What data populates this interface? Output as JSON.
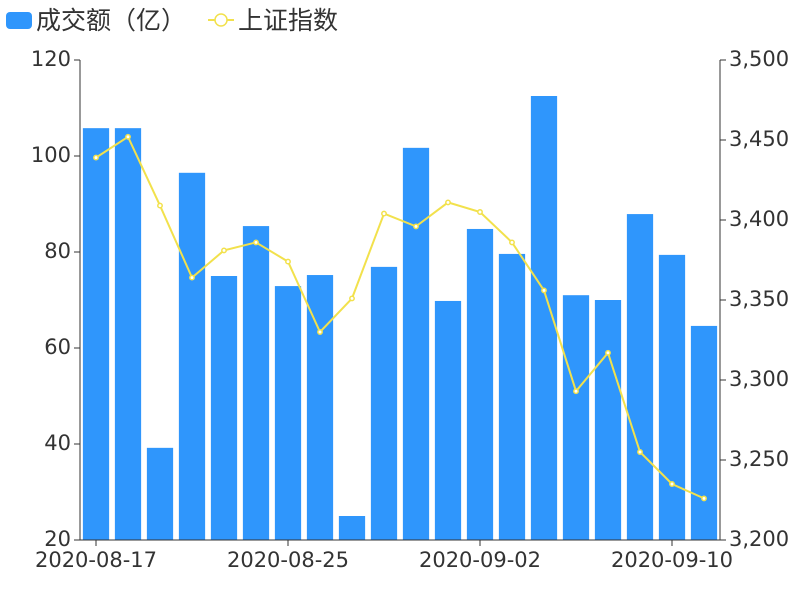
{
  "chart_data": {
    "type": "bar-line",
    "categories": [
      "2020-08-17",
      null,
      null,
      null,
      null,
      null,
      "2020-08-25",
      null,
      null,
      null,
      null,
      null,
      "2020-09-02",
      null,
      null,
      null,
      null,
      null,
      "2020-09-10",
      null
    ],
    "series": [
      {
        "name": "成交额（亿）",
        "type": "bar",
        "color": "#2f96fc",
        "axis": "y",
        "values": [
          105.8,
          105.8,
          39.2,
          96.5,
          75,
          85.4,
          72.9,
          75.2,
          25,
          76.9,
          101.7,
          69.8,
          84.8,
          79.6,
          112.5,
          71,
          70,
          87.9,
          79.4,
          64.6
        ]
      },
      {
        "name": "上证指数",
        "type": "line",
        "color": "#f2e14c",
        "axis": "y2",
        "values": [
          3439,
          3452,
          3409,
          3364,
          3381,
          3386,
          3374,
          3330,
          3351,
          3404,
          3396,
          3411,
          3405,
          3386,
          3356,
          3293,
          3317,
          3255,
          3235,
          3226
        ]
      }
    ],
    "ylim": [
      20,
      120
    ],
    "yticks": [
      20,
      40,
      60,
      80,
      100,
      120
    ],
    "y2lim": [
      3200,
      3500
    ],
    "y2ticks": [
      {
        "value": 3200,
        "label": "3,200"
      },
      {
        "value": 3250,
        "label": "3,250"
      },
      {
        "value": 3300,
        "label": "3,300"
      },
      {
        "value": 3350,
        "label": "3,350"
      },
      {
        "value": 3400,
        "label": "3,400"
      },
      {
        "value": 3450,
        "label": "3,450"
      },
      {
        "value": 3500,
        "label": "3,500"
      }
    ],
    "legend": "top-left",
    "grid": false
  }
}
